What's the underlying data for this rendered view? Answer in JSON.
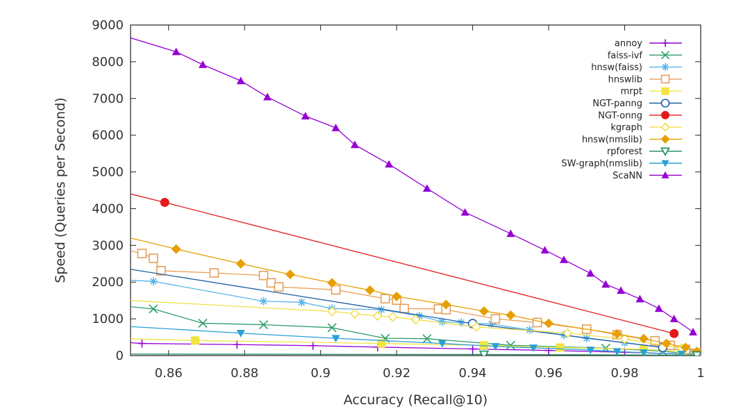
{
  "chart_data": {
    "type": "line",
    "title": "",
    "xlabel": "Accuracy (Recall@10)",
    "ylabel": "Speed (Queries per Second)",
    "xlim": [
      0.85,
      1.0
    ],
    "ylim": [
      0,
      9000
    ],
    "xticks": [
      0.86,
      0.88,
      0.9,
      0.92,
      0.94,
      0.96,
      0.98,
      1.0
    ],
    "xtick_labels": [
      "0.86",
      "0.88",
      "0.9",
      "0.92",
      "0.94",
      "0.96",
      "0.98",
      "1"
    ],
    "yticks": [
      0,
      1000,
      2000,
      3000,
      4000,
      5000,
      6000,
      7000,
      8000,
      9000
    ],
    "ytick_labels": [
      "0",
      "1000",
      "2000",
      "3000",
      "4000",
      "5000",
      "6000",
      "7000",
      "8000",
      "9000"
    ],
    "grid": false,
    "legend_position": "top-right",
    "series": [
      {
        "name": "annoy",
        "color": "#9400d3",
        "marker": "plus",
        "x": [
          0.85,
          0.853,
          0.878,
          0.898,
          0.915,
          0.94,
          0.96,
          0.98,
          0.995
        ],
        "y": [
          350,
          330,
          300,
          270,
          230,
          180,
          140,
          90,
          40
        ]
      },
      {
        "name": "faiss-ivf",
        "color": "#2e9e6b",
        "marker": "x",
        "x": [
          0.85,
          0.856,
          0.869,
          0.885,
          0.903,
          0.917,
          0.928,
          0.95,
          0.975,
          0.99,
          0.999
        ],
        "y": [
          1330,
          1270,
          880,
          840,
          760,
          470,
          460,
          280,
          200,
          120,
          20
        ]
      },
      {
        "name": "hnsw(faiss)",
        "color": "#56b4e9",
        "marker": "asterisk",
        "x": [
          0.85,
          0.856,
          0.885,
          0.895,
          0.903,
          0.916,
          0.926,
          0.932,
          0.937,
          0.945,
          0.955,
          0.964,
          0.97,
          0.98,
          0.99,
          0.997
        ],
        "y": [
          2050,
          2020,
          1480,
          1450,
          1280,
          1250,
          1080,
          920,
          900,
          860,
          700,
          560,
          470,
          350,
          230,
          110
        ]
      },
      {
        "name": "hnswlib",
        "color": "#e69f59",
        "marker": "square",
        "x": [
          0.85,
          0.853,
          0.856,
          0.858,
          0.872,
          0.885,
          0.887,
          0.889,
          0.904,
          0.917,
          0.92,
          0.922,
          0.931,
          0.933,
          0.946,
          0.957,
          0.97,
          0.978,
          0.988,
          0.992,
          0.996,
          0.999
        ],
        "y": [
          2850,
          2780,
          2650,
          2310,
          2250,
          2180,
          1980,
          1870,
          1790,
          1550,
          1510,
          1280,
          1270,
          1250,
          1000,
          900,
          720,
          570,
          400,
          280,
          170,
          60
        ]
      },
      {
        "name": "mrpt",
        "color": "#f0e442",
        "marker": "filled-square",
        "x": [
          0.85,
          0.867,
          0.916,
          0.943,
          0.963,
          0.985,
          0.995
        ],
        "y": [
          460,
          410,
          330,
          280,
          220,
          170,
          110
        ]
      },
      {
        "name": "NGT-panng",
        "color": "#1f5fa8",
        "marker": "circle",
        "x": [
          0.85,
          0.94,
          0.99
        ],
        "y": [
          2350,
          870,
          220
        ]
      },
      {
        "name": "NGT-onng",
        "color": "#e41a1c",
        "marker": "filled-circle",
        "x": [
          0.85,
          0.859,
          0.993
        ],
        "y": [
          4400,
          4170,
          600
        ]
      },
      {
        "name": "kgraph",
        "color": "#f2df4a",
        "marker": "diamond",
        "x": [
          0.85,
          0.903,
          0.909,
          0.915,
          0.919,
          0.925,
          0.941,
          0.965,
          0.98,
          0.995
        ],
        "y": [
          1500,
          1200,
          1140,
          1080,
          1050,
          980,
          780,
          610,
          450,
          200
        ]
      },
      {
        "name": "hnsw(nmslib)",
        "color": "#e69f00",
        "marker": "filled-diamond",
        "x": [
          0.85,
          0.862,
          0.879,
          0.892,
          0.903,
          0.913,
          0.92,
          0.933,
          0.943,
          0.95,
          0.96,
          0.978,
          0.985,
          0.991,
          0.996,
          0.999
        ],
        "y": [
          3200,
          2900,
          2500,
          2210,
          1980,
          1780,
          1610,
          1390,
          1210,
          1100,
          880,
          590,
          460,
          330,
          220,
          110
        ]
      },
      {
        "name": "rpforest",
        "color": "#1a8a5a",
        "marker": "triangle-down",
        "x": [
          0.85,
          0.943,
          0.999
        ],
        "y": [
          40,
          30,
          10
        ]
      },
      {
        "name": "SW-graph(nmslib)",
        "color": "#2a9fd6",
        "marker": "filled-triangle-down",
        "x": [
          0.85,
          0.879,
          0.904,
          0.932,
          0.946,
          0.956,
          0.971,
          0.978,
          0.985,
          0.995
        ],
        "y": [
          790,
          610,
          470,
          330,
          250,
          210,
          150,
          110,
          80,
          40
        ]
      },
      {
        "name": "ScaNN",
        "color": "#9400d3",
        "marker": "filled-triangle",
        "x": [
          0.85,
          0.862,
          0.869,
          0.879,
          0.886,
          0.896,
          0.904,
          0.909,
          0.918,
          0.928,
          0.938,
          0.95,
          0.959,
          0.964,
          0.971,
          0.975,
          0.979,
          0.984,
          0.989,
          0.993,
          0.998
        ],
        "y": [
          8650,
          8270,
          7920,
          7480,
          7040,
          6520,
          6200,
          5740,
          5210,
          4550,
          3900,
          3320,
          2870,
          2610,
          2240,
          1940,
          1770,
          1540,
          1280,
          1000,
          640
        ]
      }
    ]
  }
}
